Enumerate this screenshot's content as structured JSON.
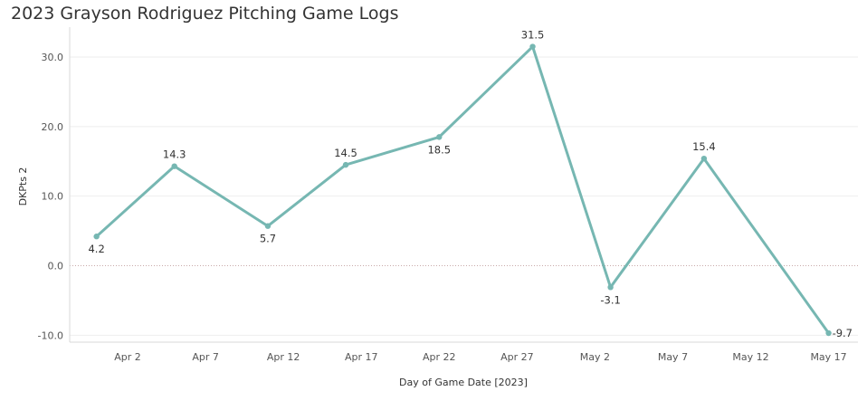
{
  "title": "2023 Grayson Rodriguez Pitching Game Logs",
  "colors": {
    "line": "#76b7b2",
    "grid": "#eeeeee",
    "zero": "#c8aaaa",
    "axis": "#d9d9d9"
  },
  "chart_data": {
    "type": "line",
    "title": "2023 Grayson Rodriguez Pitching Game Logs",
    "xlabel": "Day of Game Date [2023]",
    "ylabel": "DKPts 2",
    "ylim": [
      -11,
      33
    ],
    "xlim": [
      "2023-03-28",
      "2023-05-19"
    ],
    "yticks": [
      -10,
      0,
      10,
      20,
      30
    ],
    "ytick_labels": [
      "-10.0",
      "0.0",
      "10.0",
      "20.0",
      "30.0"
    ],
    "xticks": [
      {
        "date": "2023-04-02",
        "label": "Apr 2"
      },
      {
        "date": "2023-04-07",
        "label": "Apr 7"
      },
      {
        "date": "2023-04-12",
        "label": "Apr 12"
      },
      {
        "date": "2023-04-17",
        "label": "Apr 17"
      },
      {
        "date": "2023-04-22",
        "label": "Apr 22"
      },
      {
        "date": "2023-04-27",
        "label": "Apr 27"
      },
      {
        "date": "2023-05-02",
        "label": "May 2"
      },
      {
        "date": "2023-05-07",
        "label": "May 7"
      },
      {
        "date": "2023-05-12",
        "label": "May 12"
      },
      {
        "date": "2023-05-17",
        "label": "May 17"
      }
    ],
    "grid": true,
    "series": [
      {
        "points": [
          {
            "x": "2023-03-31",
            "y": 4.2,
            "label": "4.2",
            "label_pos": "below"
          },
          {
            "x": "2023-04-05",
            "y": 14.3,
            "label": "14.3",
            "label_pos": "above"
          },
          {
            "x": "2023-04-11",
            "y": 5.7,
            "label": "5.7",
            "label_pos": "below"
          },
          {
            "x": "2023-04-16",
            "y": 14.5,
            "label": "14.5",
            "label_pos": "above"
          },
          {
            "x": "2023-04-22",
            "y": 18.5,
            "label": "18.5",
            "label_pos": "below"
          },
          {
            "x": "2023-04-28",
            "y": 31.5,
            "label": "31.5",
            "label_pos": "above"
          },
          {
            "x": "2023-05-03",
            "y": -3.1,
            "label": "-3.1",
            "label_pos": "below"
          },
          {
            "x": "2023-05-09",
            "y": 15.4,
            "label": "15.4",
            "label_pos": "above"
          },
          {
            "x": "2023-05-17",
            "y": -9.7,
            "label": "-9.7",
            "label_pos": "right"
          }
        ]
      }
    ]
  }
}
